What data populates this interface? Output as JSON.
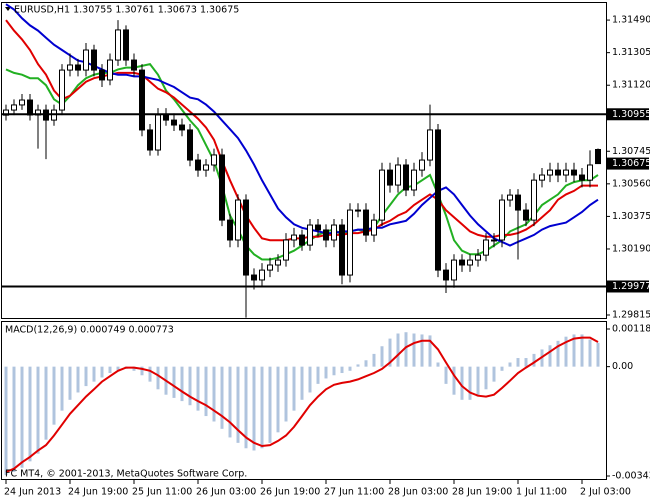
{
  "chart_data": [
    {
      "type": "candlestick",
      "title": "EURUSD,H1  1.30755 1.30761 1.30673 1.30675",
      "categories": [
        "24 Jun 2013",
        null,
        null,
        null,
        null,
        null,
        null,
        null,
        "24 Jun 19:00",
        null,
        null,
        null,
        null,
        null,
        null,
        null,
        "25 Jun 11:00",
        null,
        null,
        null,
        null,
        null,
        null,
        null,
        "26 Jun 03:00",
        null,
        null,
        null,
        null,
        null,
        null,
        null,
        "26 Jun 19:00",
        null,
        null,
        null,
        null,
        null,
        null,
        null,
        "27 Jun 11:00",
        null,
        null,
        null,
        null,
        null,
        null,
        null,
        "28 Jun 03:00",
        null,
        null,
        null,
        null,
        null,
        null,
        null,
        "28 Jun 19:00",
        null,
        null,
        null,
        null,
        null,
        null,
        null,
        "1 Jul 11:00",
        null,
        null,
        null,
        null,
        null,
        null,
        null,
        "2 Jul 03:00",
        null,
        null
      ],
      "open": [
        1.3095,
        1.30979,
        1.31008,
        1.31036,
        1.30951,
        1.30979,
        1.30922,
        1.30979,
        1.31206,
        1.31235,
        1.31206,
        1.3132,
        1.31206,
        1.3115,
        1.31263,
        1.31434,
        1.31263,
        1.31206,
        1.30866,
        1.30752,
        1.30951,
        1.30922,
        1.30894,
        1.30866,
        1.30695,
        1.30638,
        1.30667,
        1.30724,
        1.30354,
        1.30241,
        1.30468,
        1.30042,
        1.30014,
        1.3007,
        1.30099,
        1.30127,
        1.30241,
        1.30269,
        1.30212,
        1.30326,
        1.30298,
        1.30241,
        1.30326,
        1.30042,
        1.30411,
        1.30411,
        1.30269,
        1.30354,
        1.30638,
        1.30553,
        1.30667,
        1.30525,
        1.30638,
        1.30695,
        1.30866,
        1.3007,
        1.30014,
        1.30127,
        1.30099,
        1.30127,
        1.30155,
        1.30241,
        1.30241,
        1.30468,
        1.30496,
        1.30411,
        1.30354,
        1.30581,
        1.3061,
        1.30638,
        1.3061,
        1.30638,
        1.3061,
        1.30581,
        1.30755
      ],
      "high": [
        1.3101,
        1.3104,
        1.3107,
        1.3107,
        1.3101,
        1.3101,
        1.3101,
        1.3124,
        1.313,
        1.3127,
        1.3136,
        1.3135,
        1.3124,
        1.313,
        1.3149,
        1.3146,
        1.313,
        1.3124,
        1.309,
        1.3099,
        1.3099,
        1.3096,
        1.3093,
        1.309,
        1.3073,
        1.307,
        1.3076,
        1.3076,
        1.3039,
        1.305,
        1.305,
        1.3008,
        1.3011,
        1.3014,
        1.3016,
        1.3028,
        1.3031,
        1.303,
        1.3036,
        1.3036,
        1.3033,
        1.3036,
        1.3036,
        1.3045,
        1.3045,
        1.3045,
        1.3039,
        1.3068,
        1.3068,
        1.3071,
        1.307,
        1.3068,
        1.3074,
        1.3101,
        1.309,
        1.3011,
        1.3016,
        1.3016,
        1.3016,
        1.3019,
        1.3028,
        1.3028,
        1.305,
        1.3053,
        1.3053,
        1.3045,
        1.3062,
        1.3065,
        1.3068,
        1.3068,
        1.3068,
        1.3068,
        1.3065,
        1.3075,
        1.30761
      ],
      "low": [
        1.3092,
        1.3095,
        1.3098,
        1.3092,
        1.3076,
        1.307,
        1.3089,
        1.3095,
        1.3117,
        1.3117,
        1.3117,
        1.3117,
        1.3111,
        1.3112,
        1.3123,
        1.3123,
        1.3117,
        1.3083,
        1.3072,
        1.3072,
        1.3089,
        1.3086,
        1.3083,
        1.3066,
        1.306,
        1.306,
        1.3063,
        1.3032,
        1.302,
        1.302,
        1.298,
        1.2996,
        1.2998,
        1.3003,
        1.3006,
        1.3009,
        1.302,
        1.3018,
        1.3018,
        1.3026,
        1.302,
        1.302,
        1.2999,
        1.3,
        1.3037,
        1.3023,
        1.3023,
        1.3032,
        1.3051,
        1.3051,
        1.3049,
        1.3049,
        1.306,
        1.3066,
        1.3003,
        1.2994,
        1.2997,
        1.3006,
        1.3006,
        1.3009,
        1.3012,
        1.302,
        1.302,
        1.3043,
        1.3013,
        1.3032,
        1.3032,
        1.3054,
        1.3057,
        1.3057,
        1.3057,
        1.3057,
        1.3054,
        1.3054,
        1.30673
      ],
      "close": [
        1.30979,
        1.31008,
        1.31036,
        1.30951,
        1.30979,
        1.30922,
        1.30979,
        1.31206,
        1.31235,
        1.31206,
        1.3132,
        1.31206,
        1.3115,
        1.31263,
        1.31434,
        1.31263,
        1.31206,
        1.30866,
        1.30752,
        1.30951,
        1.30922,
        1.30894,
        1.30866,
        1.30695,
        1.30638,
        1.30667,
        1.30724,
        1.30354,
        1.30241,
        1.30468,
        1.30042,
        1.30014,
        1.3007,
        1.30099,
        1.30127,
        1.30241,
        1.30269,
        1.30212,
        1.30326,
        1.30298,
        1.30241,
        1.30326,
        1.30042,
        1.30411,
        1.30411,
        1.30269,
        1.30354,
        1.30638,
        1.30553,
        1.30667,
        1.30525,
        1.30638,
        1.30695,
        1.30866,
        1.3007,
        1.30014,
        1.30127,
        1.30099,
        1.30127,
        1.30155,
        1.30241,
        1.30241,
        1.30468,
        1.30496,
        1.30411,
        1.30354,
        1.30581,
        1.3061,
        1.30638,
        1.3061,
        1.30638,
        1.3061,
        1.30581,
        1.30667,
        1.30675
      ],
      "series": [
        {
          "color": "#22b022",
          "values": [
            1.3121,
            1.3119,
            1.3118,
            1.3116,
            1.3116,
            1.3112,
            1.3104,
            1.3101,
            1.3106,
            1.3112,
            1.3116,
            1.3118,
            1.3119,
            1.3119,
            1.3121,
            1.3122,
            1.3122,
            1.3123,
            1.3124,
            1.3118,
            1.3109,
            1.3104,
            1.3098,
            1.3092,
            1.3087,
            1.3078,
            1.3069,
            1.3055,
            1.3038,
            1.303,
            1.3021,
            1.3016,
            1.3013,
            1.3013,
            1.3014,
            1.3016,
            1.3018,
            1.3021,
            1.3024,
            1.3027,
            1.3029,
            1.303,
            1.3027,
            1.3029,
            1.303,
            1.3029,
            1.3031,
            1.3038,
            1.3044,
            1.305,
            1.3054,
            1.3055,
            1.3058,
            1.3061,
            1.305,
            1.3038,
            1.3024,
            1.3018,
            1.3016,
            1.3016,
            1.3018,
            1.3021,
            1.3024,
            1.3029,
            1.3031,
            1.3033,
            1.3038,
            1.3044,
            1.3047,
            1.305,
            1.3055,
            1.3057,
            1.3058,
            1.3058,
            1.3061
          ]
        },
        {
          "color": "#e00000",
          "values": [
            1.3149,
            1.3143,
            1.3138,
            1.3132,
            1.3124,
            1.3118,
            1.3109,
            1.3104,
            1.3106,
            1.311,
            1.3114,
            1.3116,
            1.3117,
            1.3118,
            1.3119,
            1.3119,
            1.3119,
            1.3118,
            1.3114,
            1.311,
            1.3108,
            1.3105,
            1.3101,
            1.3097,
            1.3093,
            1.3088,
            1.3081,
            1.3069,
            1.3058,
            1.3048,
            1.3038,
            1.3031,
            1.3025,
            1.3024,
            1.3024,
            1.3024,
            1.3025,
            1.3025,
            1.3026,
            1.3026,
            1.3027,
            1.3027,
            1.3027,
            1.3028,
            1.3028,
            1.3029,
            1.303,
            1.3033,
            1.3035,
            1.3038,
            1.304,
            1.3044,
            1.3047,
            1.305,
            1.3047,
            1.3041,
            1.3037,
            1.3033,
            1.3029,
            1.3027,
            1.3026,
            1.3026,
            1.3027,
            1.3027,
            1.3028,
            1.303,
            1.3033,
            1.3037,
            1.3041,
            1.3047,
            1.305,
            1.3052,
            1.3055,
            1.3055,
            1.3055
          ]
        },
        {
          "color": "#0000d0",
          "values": [
            1.3158,
            1.3155,
            1.315,
            1.3146,
            1.3143,
            1.3139,
            1.3135,
            1.3132,
            1.3129,
            1.3126,
            1.3125,
            1.3123,
            1.3121,
            1.3119,
            1.3118,
            1.3118,
            1.3117,
            1.3117,
            1.3116,
            1.3115,
            1.3113,
            1.3111,
            1.3108,
            1.3105,
            1.3104,
            1.3101,
            1.3097,
            1.3092,
            1.3087,
            1.3082,
            1.3075,
            1.3067,
            1.3058,
            1.305,
            1.3042,
            1.3037,
            1.3033,
            1.3031,
            1.303,
            1.3029,
            1.3028,
            1.3028,
            1.3029,
            1.3029,
            1.303,
            1.303,
            1.3031,
            1.3031,
            1.3033,
            1.3034,
            1.3035,
            1.3039,
            1.3044,
            1.3048,
            1.3052,
            1.3054,
            1.305,
            1.3044,
            1.3038,
            1.3033,
            1.3029,
            1.3025,
            1.3023,
            1.3021,
            1.3023,
            1.3025,
            1.3027,
            1.303,
            1.3032,
            1.3033,
            1.3034,
            1.3037,
            1.304,
            1.3044,
            1.3047
          ]
        }
      ],
      "ylim": [
        1.29798,
        1.31587
      ],
      "yticks": [
        {
          "value": 1.3149,
          "label": "1.31490"
        },
        1.31305,
        {
          "value": 1.3112,
          "label": "1.31120"
        },
        1.30745,
        {
          "value": 1.3056,
          "label": "1.30560"
        },
        1.30375,
        {
          "value": 1.3019,
          "label": "1.30190"
        },
        1.29815
      ],
      "hlines": [
        1.30955,
        1.29977
      ],
      "up_color": "#ffffff",
      "down_color": "#000000"
    },
    {
      "type": "macd",
      "title": "MACD(12,26,9) 0.000749 0.000773",
      "series": [
        {
          "type": "bar",
          "color": "#b0c4de",
          "values": [
            -0.0034,
            -0.0033,
            -0.00317,
            -0.00297,
            -0.00273,
            -0.00229,
            -0.00182,
            -0.00138,
            -0.00104,
            -0.00081,
            -0.00061,
            -0.00047,
            -0.00034,
            -0.0002,
            -0.0001,
            -7e-05,
            -0.00013,
            -0.00027,
            -0.00047,
            -0.00071,
            -0.00088,
            -0.00098,
            -0.00108,
            -0.00121,
            -0.00138,
            -0.00155,
            -0.00172,
            -0.00195,
            -0.00222,
            -0.00239,
            -0.00256,
            -0.00263,
            -0.00256,
            -0.00239,
            -0.00206,
            -0.00172,
            -0.00138,
            -0.00104,
            -0.00081,
            -0.00054,
            -0.00037,
            -0.00027,
            -0.0002,
            -0.00013,
            7e-05,
            0.0002,
            0.0004,
            0.00064,
            0.00088,
            0.00104,
            0.00108,
            0.00104,
            0.00101,
            0.00098,
            0.00013,
            -0.00054,
            -0.00088,
            -0.00104,
            -0.00104,
            -0.00094,
            -0.00071,
            -0.00047,
            -0.00013,
            0.00013,
            0.00027,
            0.00027,
            0.0004,
            0.00054,
            0.00067,
            0.00081,
            0.00094,
            0.00101,
            0.00101,
            0.00085,
            0.000749
          ]
        },
        {
          "type": "line",
          "color": "#e00000",
          "values": [
            -0.0033,
            -0.0032,
            -0.003,
            -0.00283,
            -0.00263,
            -0.00246,
            -0.00216,
            -0.00182,
            -0.00148,
            -0.00121,
            -0.00094,
            -0.00071,
            -0.00047,
            -0.0003,
            -0.00013,
            -3e-05,
            -3e-05,
            -7e-05,
            -0.00013,
            -0.00027,
            -0.00044,
            -0.00061,
            -0.00078,
            -0.00094,
            -0.00108,
            -0.00121,
            -0.00138,
            -0.00155,
            -0.00175,
            -0.00199,
            -0.00222,
            -0.00239,
            -0.00249,
            -0.00246,
            -0.00233,
            -0.00216,
            -0.00189,
            -0.00155,
            -0.00121,
            -0.00094,
            -0.00071,
            -0.00057,
            -0.00051,
            -0.00047,
            -0.0004,
            -0.0003,
            -0.0002,
            -7e-05,
            0.00013,
            0.00037,
            0.00061,
            0.00074,
            0.00081,
            0.00081,
            0.00054,
            0.00013,
            -0.00027,
            -0.00061,
            -0.00081,
            -0.00091,
            -0.00094,
            -0.00088,
            -0.00067,
            -0.00044,
            -0.0002,
            -3e-05,
            0.00013,
            0.0003,
            0.00047,
            0.00064,
            0.00077,
            0.00088,
            0.00091,
            0.00091,
            0.000773
          ]
        }
      ],
      "ylim": [
        -0.00343,
        0.001181
      ],
      "yticks": [
        0.001181,
        {
          "value": 0,
          "label": "0.00"
        },
        -0.00343
      ]
    }
  ],
  "footer": "FC MT4, © 2001-2013, MetaQuotes Software Corp."
}
